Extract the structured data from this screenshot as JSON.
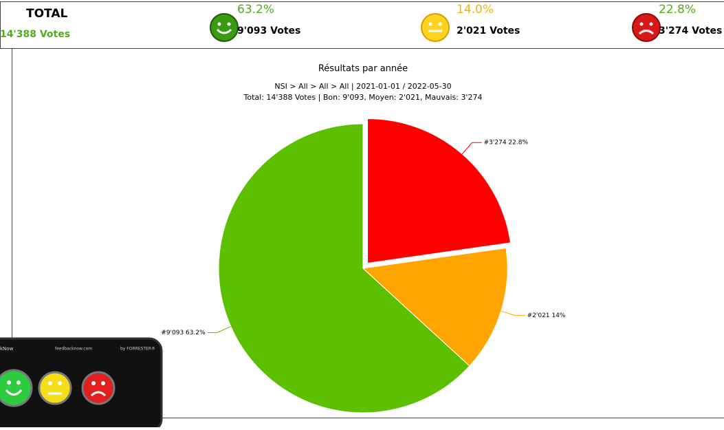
{
  "header": {
    "total": {
      "title": "TOTAL",
      "votes": "14'388 Votes"
    },
    "stats": [
      {
        "percent": "63.2%",
        "votes": "9'093 Votes",
        "color": "#4caf1a"
      },
      {
        "percent": "14.0%",
        "votes": "2'021 Votes",
        "color": "#f5b400"
      },
      {
        "percent": "22.8%",
        "votes": "3'274 Votes",
        "color": "#4caf1a"
      }
    ]
  },
  "chart_data": {
    "type": "pie",
    "title": "Résultats par année",
    "subtitle": [
      "NSI > All > All > All | 2021-01-01 / 2022-05-30",
      "Total: 14'388 Votes | Bon: 9'093, Moyen: 2'021, Mauvais: 3'274"
    ],
    "values": [
      9093,
      2021,
      3274
    ],
    "value_labels": [
      "#9'093 63.2%",
      "#2'021 14%",
      "#3'274 22.8%"
    ],
    "colors": [
      "#5cbf00",
      "#ffa500",
      "#ff0000"
    ],
    "explode": [
      false,
      false,
      true
    ]
  },
  "device": {
    "brand": "kNow",
    "url": "feedbacknow.com",
    "maker": "by FORRESTER®"
  }
}
